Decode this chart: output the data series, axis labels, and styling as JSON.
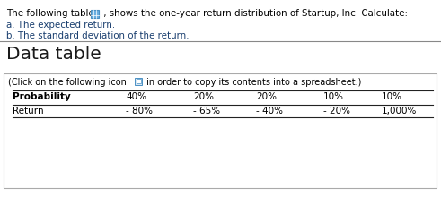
{
  "bg_color": "#ffffff",
  "text_color": "#000000",
  "blue_color": "#1c5fa8",
  "dark_blue": "#1a3f6f",
  "line1_a": "The following table,",
  "line1_b": " , shows the one-year return distribution of Startup, Inc. Calculate:",
  "bullet_a": "a. The expected return.",
  "bullet_b": "b. The standard deviation of the return.",
  "section_title": "Data table",
  "click_text": "(Click on the following icon",
  "click_text2": " in order to copy its contents into a spreadsheet.)",
  "probabilities": [
    "40%",
    "20%",
    "20%",
    "10%",
    "10%"
  ],
  "returns_display": [
    "- 80%",
    "- 65%",
    "- 40%",
    "- 20%",
    "1,000%"
  ],
  "col_header": "Probability",
  "row_label": "Return",
  "divider_color": "#888888",
  "box_edge_color": "#aaaaaa",
  "table_line_color": "#222222"
}
